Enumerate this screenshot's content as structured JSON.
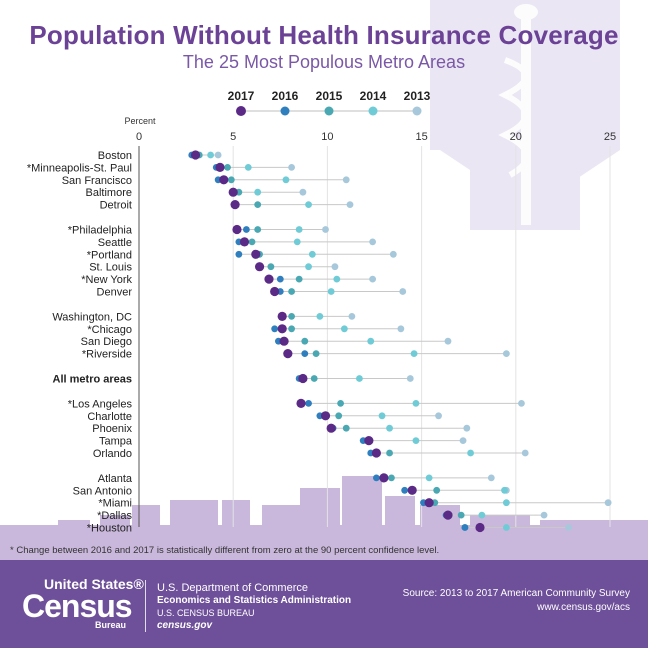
{
  "header": {
    "title": "Population Without Health Insurance Coverage",
    "subtitle": "The 25 Most Populous Metro Areas"
  },
  "chart_data": {
    "type": "scatter",
    "axis_label": "Percent",
    "xlim": [
      0,
      25
    ],
    "ticks": [
      0,
      5,
      10,
      15,
      20,
      25
    ],
    "series": [
      {
        "name": "2017",
        "color": "#5b2a86"
      },
      {
        "name": "2016",
        "color": "#2f7fbf"
      },
      {
        "name": "2015",
        "color": "#4aa8b3"
      },
      {
        "name": "2014",
        "color": "#6fcbd6"
      },
      {
        "name": "2013",
        "color": "#a6c8da"
      }
    ],
    "groups": [
      [
        {
          "label": "Boston",
          "values": [
            3.0,
            2.8,
            3.2,
            3.8,
            4.2
          ]
        },
        {
          "label": "*Minneapolis-St. Paul",
          "values": [
            4.3,
            4.1,
            4.7,
            5.8,
            8.1
          ]
        },
        {
          "label": "San Francisco",
          "values": [
            4.5,
            4.2,
            4.9,
            7.8,
            11.0
          ]
        },
        {
          "label": "Baltimore",
          "values": [
            5.0,
            5.0,
            5.3,
            6.3,
            8.7
          ]
        },
        {
          "label": "Detroit",
          "values": [
            5.1,
            5.1,
            6.3,
            9.0,
            11.2
          ]
        }
      ],
      [
        {
          "label": "*Philadelphia",
          "values": [
            5.2,
            5.7,
            6.3,
            8.5,
            9.9
          ]
        },
        {
          "label": "Seattle",
          "values": [
            5.6,
            5.3,
            6.0,
            8.4,
            12.4
          ]
        },
        {
          "label": "*Portland",
          "values": [
            6.2,
            5.3,
            6.4,
            9.2,
            13.5
          ]
        },
        {
          "label": "St. Louis",
          "values": [
            6.4,
            6.4,
            7.0,
            9.0,
            10.4
          ]
        },
        {
          "label": "*New York",
          "values": [
            6.9,
            7.5,
            8.5,
            10.5,
            12.4
          ]
        },
        {
          "label": "Denver",
          "values": [
            7.2,
            7.5,
            8.1,
            10.2,
            14.0
          ]
        }
      ],
      [
        {
          "label": "Washington, DC",
          "values": [
            7.6,
            7.6,
            8.1,
            9.6,
            11.3
          ]
        },
        {
          "label": "*Chicago",
          "values": [
            7.6,
            7.2,
            8.1,
            10.9,
            13.9
          ]
        },
        {
          "label": "San Diego",
          "values": [
            7.7,
            7.4,
            8.8,
            12.3,
            16.4
          ]
        },
        {
          "label": "*Riverside",
          "values": [
            7.9,
            8.8,
            9.4,
            14.6,
            19.5
          ]
        }
      ],
      [
        {
          "label": "All metro areas",
          "values": [
            8.7,
            8.5,
            9.3,
            11.7,
            14.4
          ],
          "bold": true
        }
      ],
      [
        {
          "label": "*Los Angeles",
          "values": [
            8.6,
            9.0,
            10.7,
            14.7,
            20.3
          ]
        },
        {
          "label": "Charlotte",
          "values": [
            9.9,
            9.6,
            10.6,
            12.9,
            15.9
          ]
        },
        {
          "label": "Phoenix",
          "values": [
            10.2,
            10.3,
            11.0,
            13.3,
            17.4
          ]
        },
        {
          "label": "Tampa",
          "values": [
            12.2,
            11.9,
            12.1,
            14.7,
            17.2
          ]
        },
        {
          "label": "Orlando",
          "values": [
            12.6,
            12.3,
            13.3,
            17.6,
            20.5
          ]
        }
      ],
      [
        {
          "label": "Atlanta",
          "values": [
            13.0,
            12.6,
            13.4,
            15.4,
            18.7
          ]
        },
        {
          "label": "San Antonio",
          "values": [
            14.5,
            14.1,
            15.8,
            19.4,
            19.5
          ]
        },
        {
          "label": "*Miami",
          "values": [
            15.4,
            15.1,
            15.7,
            19.5,
            24.9
          ]
        },
        {
          "label": "*Dallas",
          "values": [
            16.4,
            16.3,
            17.1,
            18.2,
            21.5
          ]
        },
        {
          "label": "*Houston",
          "values": [
            18.1,
            17.3,
            17.3,
            19.5,
            22.8
          ]
        }
      ]
    ]
  },
  "footnote": "* Change between 2016 and 2017 is statistically different from zero at the 90 percent confidence level.",
  "footer": {
    "logo_line1": "United States®",
    "logo_line2": "Census",
    "logo_line3": "Bureau",
    "dept_line1": "U.S. Department of Commerce",
    "dept_line2": "Economics and Statistics Administration",
    "dept_line3": "U.S. CENSUS BUREAU",
    "dept_line4": "census.gov",
    "source": "Source: 2013 to 2017 American Community Survey",
    "source_url": "www.census.gov/acs"
  }
}
